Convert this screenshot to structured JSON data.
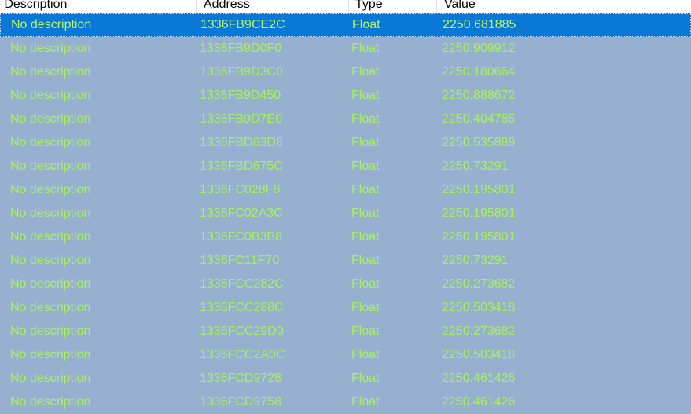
{
  "columns": {
    "description": "e Description",
    "address": "Address",
    "type": "Type",
    "value": "Value"
  },
  "colors": {
    "row_background": "#98b0cf",
    "selected_background": "#0a78d6",
    "text": "#aaf05c"
  },
  "rows": [
    {
      "description": "No description",
      "address": "1336FB9CE2C",
      "type": "Float",
      "value": "2250.681885",
      "selected": true
    },
    {
      "description": "No description",
      "address": "1336FB9D0F0",
      "type": "Float",
      "value": "2250.909912"
    },
    {
      "description": "No description",
      "address": "1336FB9D3C0",
      "type": "Float",
      "value": "2250.180664"
    },
    {
      "description": "No description",
      "address": "1336FB9D450",
      "type": "Float",
      "value": "2250.888672"
    },
    {
      "description": "No description",
      "address": "1336FB9D7E0",
      "type": "Float",
      "value": "2250.404785"
    },
    {
      "description": "No description",
      "address": "1336FBD63D8",
      "type": "Float",
      "value": "2250.535889"
    },
    {
      "description": "No description",
      "address": "1336FBD675C",
      "type": "Float",
      "value": "2250.73291"
    },
    {
      "description": "No description",
      "address": "1336FC028F8",
      "type": "Float",
      "value": "2250.195801"
    },
    {
      "description": "No description",
      "address": "1336FC02A3C",
      "type": "Float",
      "value": "2250.195801"
    },
    {
      "description": "No description",
      "address": "1336FC0B3B8",
      "type": "Float",
      "value": "2250.195801"
    },
    {
      "description": "No description",
      "address": "1336FC11F70",
      "type": "Float",
      "value": "2250.73291"
    },
    {
      "description": "No description",
      "address": "1336FCC282C",
      "type": "Float",
      "value": "2250.273682"
    },
    {
      "description": "No description",
      "address": "1336FCC288C",
      "type": "Float",
      "value": "2250.503418"
    },
    {
      "description": "No description",
      "address": "1336FCC29D0",
      "type": "Float",
      "value": "2250.273682"
    },
    {
      "description": "No description",
      "address": "1336FCC2A0C",
      "type": "Float",
      "value": "2250.503418"
    },
    {
      "description": "No description",
      "address": "1336FCD9728",
      "type": "Float",
      "value": "2250.461426"
    },
    {
      "description": "No description",
      "address": "1336FCD9758",
      "type": "Float",
      "value": "2250.461426"
    }
  ]
}
